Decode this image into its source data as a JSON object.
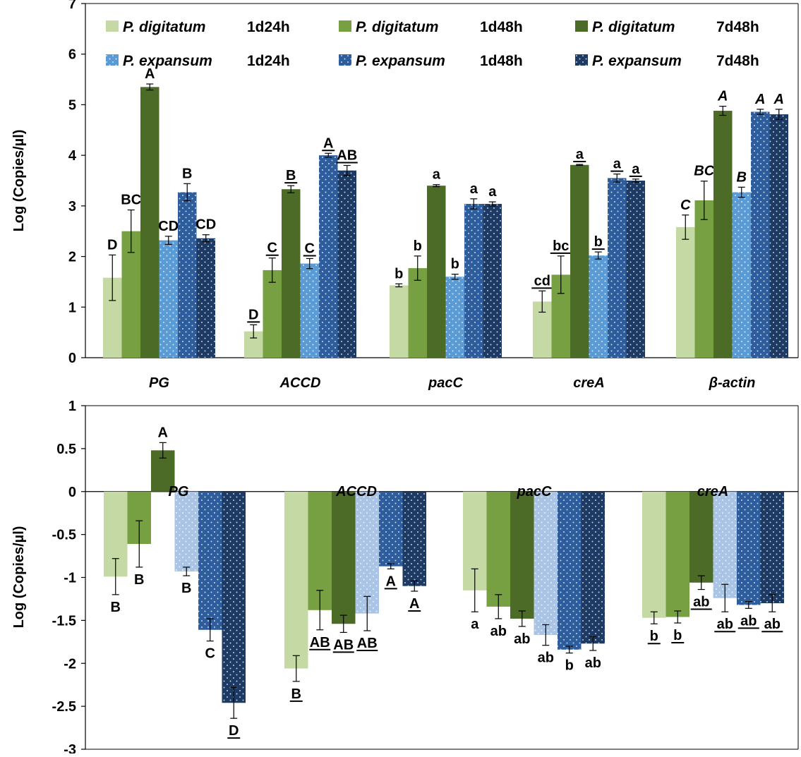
{
  "chart_data": [
    {
      "type": "bar",
      "ylabel": "Log (Copies/µl)",
      "ylim": [
        0,
        7
      ],
      "yticks": [
        "0",
        "1",
        "2",
        "3",
        "4",
        "5",
        "6",
        "7"
      ],
      "categories": [
        "PG",
        "ACCD",
        "pacC",
        "creA",
        "β-actin"
      ],
      "legend_position": "top",
      "series": [
        {
          "name": "P. digitatum",
          "time": "1d24h",
          "color": "#c4d9a3",
          "pattern": "none",
          "values": [
            1.58,
            0.52,
            1.43,
            1.11,
            2.58
          ],
          "errors": [
            0.45,
            0.13,
            0.03,
            0.21,
            0.24
          ],
          "labels": [
            "D",
            "D",
            "b",
            "cd",
            "C"
          ],
          "label_italic": [
            false,
            false,
            false,
            false,
            true
          ],
          "label_underline": [
            false,
            true,
            false,
            true,
            false
          ]
        },
        {
          "name": "P. digitatum",
          "time": "1d48h",
          "color": "#77a043",
          "pattern": "none",
          "values": [
            2.5,
            1.73,
            1.77,
            1.64,
            3.11
          ],
          "errors": [
            0.42,
            0.24,
            0.24,
            0.37,
            0.38
          ],
          "labels": [
            "BC",
            "C",
            "b",
            "bc",
            "BC"
          ],
          "label_italic": [
            false,
            false,
            false,
            false,
            true
          ],
          "label_underline": [
            false,
            true,
            false,
            true,
            false
          ]
        },
        {
          "name": "P. digitatum",
          "time": "7d48h",
          "color": "#4c6b26",
          "pattern": "none",
          "values": [
            5.35,
            3.33,
            3.4,
            3.81,
            4.88
          ],
          "errors": [
            0.06,
            0.07,
            0.02,
            0.01,
            0.09
          ],
          "labels": [
            "A",
            "B",
            "a",
            "a",
            "A"
          ],
          "label_italic": [
            false,
            false,
            false,
            false,
            true
          ],
          "label_underline": [
            false,
            true,
            false,
            true,
            false
          ]
        },
        {
          "name": "P. expansum",
          "time": "1d24h",
          "color": "#5b9bd5",
          "pattern": "dots",
          "values": [
            2.32,
            1.86,
            1.6,
            2.02,
            3.27
          ],
          "errors": [
            0.08,
            0.1,
            0.05,
            0.07,
            0.1
          ],
          "labels": [
            "CD",
            "C",
            "b",
            "b",
            "B"
          ],
          "label_italic": [
            false,
            false,
            false,
            false,
            true
          ],
          "label_underline": [
            false,
            true,
            false,
            true,
            false
          ]
        },
        {
          "name": "P. expansum",
          "time": "1d48h",
          "color": "#2e5d9e",
          "pattern": "dots",
          "values": [
            3.27,
            4.0,
            3.04,
            3.55,
            4.86
          ],
          "errors": [
            0.17,
            0.04,
            0.1,
            0.08,
            0.05
          ],
          "labels": [
            "B",
            "A",
            "a",
            "a",
            "A"
          ],
          "label_italic": [
            false,
            false,
            false,
            false,
            true
          ],
          "label_underline": [
            false,
            true,
            false,
            true,
            false
          ]
        },
        {
          "name": "P. expansum",
          "time": "7d48h",
          "color": "#1c3a63",
          "pattern": "dots",
          "values": [
            2.36,
            3.7,
            3.04,
            3.5,
            4.81
          ],
          "errors": [
            0.07,
            0.1,
            0.04,
            0.03,
            0.1
          ],
          "labels": [
            "CD",
            "AB",
            "a",
            "a",
            "A"
          ],
          "label_italic": [
            false,
            false,
            false,
            false,
            true
          ],
          "label_underline": [
            false,
            true,
            false,
            true,
            false
          ]
        }
      ]
    },
    {
      "type": "bar",
      "ylabel": "Log (Copies/µl)",
      "ylim": [
        -3,
        1
      ],
      "yticks": [
        "1",
        "0.5",
        "0",
        "-0.5",
        "-1",
        "-1.5",
        "-2",
        "-2.5",
        "-3"
      ],
      "categories": [
        "PG",
        "ACCD",
        "pacC",
        "creA"
      ],
      "series": [
        {
          "name": "P. digitatum",
          "time": "1d24h",
          "color": "#c4d9a3",
          "pattern": "none",
          "values": [
            -0.99,
            -2.06,
            -1.15,
            -1.47
          ],
          "errors": [
            0.21,
            0.15,
            0.25,
            0.07
          ],
          "labels": [
            "B",
            "B",
            "a",
            "b"
          ],
          "label_underline": [
            false,
            true,
            false,
            true
          ]
        },
        {
          "name": "P. digitatum",
          "time": "1d48h",
          "color": "#77a043",
          "pattern": "none",
          "values": [
            -0.61,
            -1.38,
            -1.34,
            -1.46
          ],
          "errors": [
            0.27,
            0.23,
            0.14,
            0.07
          ],
          "labels": [
            "B",
            "AB",
            "ab",
            "b"
          ],
          "label_underline": [
            false,
            true,
            false,
            true
          ]
        },
        {
          "name": "P. digitatum",
          "time": "7d48h",
          "color": "#4c6b26",
          "pattern": "none",
          "values": [
            0.48,
            -1.54,
            -1.48,
            -1.06
          ],
          "errors": [
            0.09,
            0.1,
            0.09,
            0.08
          ],
          "labels": [
            "A",
            "AB",
            "ab",
            "ab"
          ],
          "label_underline": [
            false,
            true,
            false,
            true
          ]
        },
        {
          "name": "P. expansum",
          "time": "1d24h",
          "color": "#aac4e6",
          "pattern": "dots",
          "values": [
            -0.93,
            -1.42,
            -1.67,
            -1.24
          ],
          "errors": [
            0.05,
            0.2,
            0.12,
            0.16
          ],
          "labels": [
            "B",
            "AB",
            "ab",
            "ab"
          ],
          "label_underline": [
            false,
            true,
            false,
            true
          ]
        },
        {
          "name": "P. expansum",
          "time": "1d48h",
          "color": "#2e5d9e",
          "pattern": "dots",
          "values": [
            -1.61,
            -0.87,
            -1.84,
            -1.32
          ],
          "errors": [
            0.13,
            0.03,
            0.04,
            0.04
          ],
          "labels": [
            "C",
            "A",
            "b",
            "ab"
          ],
          "label_underline": [
            false,
            true,
            false,
            true
          ]
        },
        {
          "name": "P. expansum",
          "time": "7d48h",
          "color": "#1c3a63",
          "pattern": "dots",
          "values": [
            -2.46,
            -1.1,
            -1.77,
            -1.3
          ],
          "errors": [
            0.18,
            0.06,
            0.08,
            0.1
          ],
          "labels": [
            "D",
            "A",
            "ab",
            "ab"
          ],
          "label_underline": [
            true,
            true,
            false,
            true
          ]
        }
      ]
    }
  ]
}
